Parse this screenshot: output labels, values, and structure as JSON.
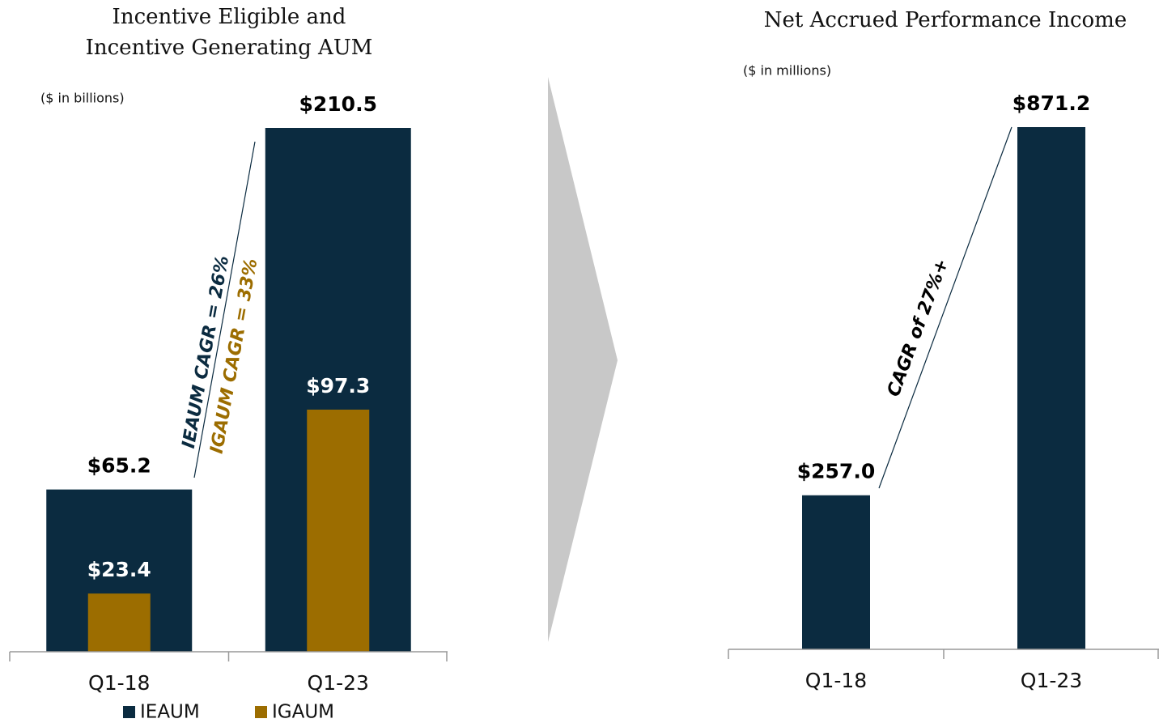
{
  "chart_data": [
    {
      "type": "bar",
      "title": "Incentive Eligible and Incentive Generating AUM",
      "subtitle": "($ in billions)",
      "categories": [
        "Q1-18",
        "Q1-23"
      ],
      "series": [
        {
          "name": "IEAUM",
          "color": "#0b2b40",
          "values": [
            65.2,
            210.5
          ],
          "value_labels": [
            "$65.2",
            "$210.5"
          ]
        },
        {
          "name": "IGAUM",
          "color": "#9c6d00",
          "values": [
            23.4,
            97.3
          ],
          "value_labels": [
            "$23.4",
            "$97.3"
          ]
        }
      ],
      "ylim": [
        0,
        210.5
      ],
      "annotations": [
        "IEAUM CAGR = 26%",
        "IGAUM CAGR = 33%"
      ]
    },
    {
      "type": "bar",
      "title": "Net Accrued Performance Income",
      "subtitle": "($ in millions)",
      "categories": [
        "Q1-18",
        "Q1-23"
      ],
      "series": [
        {
          "color": "#0b2b40",
          "values": [
            257.0,
            871.2
          ],
          "value_labels": [
            "$257.0",
            "$871.2"
          ]
        }
      ],
      "ylim": [
        0,
        871.2
      ],
      "annotations": [
        "CAGR of 27%+"
      ]
    }
  ]
}
